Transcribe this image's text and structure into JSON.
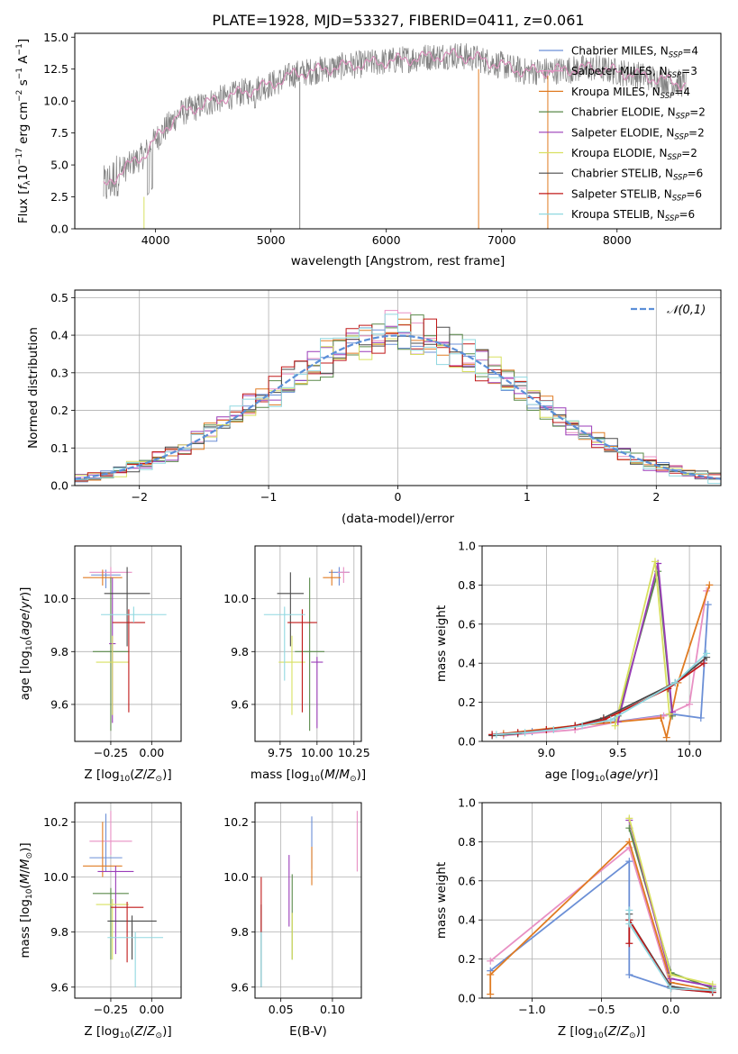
{
  "figure_title": "PLATE=1928, MJD=53327, FIBERID=0411, z=0.061",
  "series_styles": [
    {
      "name": "Chabrier MILES, N",
      "sub": "SSP",
      "suffix": "=4",
      "color": "#6b8fd6"
    },
    {
      "name": "Salpeter MILES, N",
      "sub": "SSP",
      "suffix": "=3",
      "color": "#e890c4"
    },
    {
      "name": "Kroupa MILES, N",
      "sub": "SSP",
      "suffix": "=4",
      "color": "#e07b22"
    },
    {
      "name": "Chabrier ELODIE, N",
      "sub": "SSP",
      "suffix": "=2",
      "color": "#5a8a4a"
    },
    {
      "name": "Salpeter ELODIE, N",
      "sub": "SSP",
      "suffix": "=2",
      "color": "#9a3cb8"
    },
    {
      "name": "Kroupa ELODIE, N",
      "sub": "SSP",
      "suffix": "=2",
      "color": "#d8e060"
    },
    {
      "name": "Chabrier STELIB, N",
      "sub": "SSP",
      "suffix": "=6",
      "color": "#4a4a4a"
    },
    {
      "name": "Salpeter STELIB, N",
      "sub": "SSP",
      "suffix": "=6",
      "color": "#c01818"
    },
    {
      "name": "Kroupa STELIB, N",
      "sub": "SSP",
      "suffix": "=6",
      "color": "#90d8e0"
    }
  ],
  "chart_data": [
    {
      "id": "spectrum",
      "type": "line",
      "xlabel": "wavelength [Angstrom, rest frame]",
      "ylabel": "Flux [f_λ 10^-17 erg cm^-2 s^-1 A^-1]",
      "xlim": [
        3300,
        8900
      ],
      "ylim": [
        0,
        15.3
      ],
      "xticks": [
        4000,
        5000,
        6000,
        7000,
        8000
      ],
      "yticks": [
        0.0,
        2.5,
        5.0,
        7.5,
        10.0,
        12.5,
        15.0
      ],
      "data_color": "#808080",
      "x_range": [
        3550,
        8600
      ],
      "envelope": [
        [
          3550,
          3.2
        ],
        [
          3700,
          4.5
        ],
        [
          3900,
          5.8
        ],
        [
          4000,
          7.0
        ],
        [
          4200,
          9.0
        ],
        [
          4500,
          10.0
        ],
        [
          4800,
          10.8
        ],
        [
          5000,
          11.3
        ],
        [
          5200,
          12.1
        ],
        [
          5600,
          12.7
        ],
        [
          6000,
          13.1
        ],
        [
          6400,
          13.5
        ],
        [
          6600,
          13.6
        ],
        [
          6800,
          13.3
        ],
        [
          7000,
          12.8
        ],
        [
          7200,
          12.3
        ],
        [
          7500,
          12.4
        ],
        [
          7800,
          12.6
        ],
        [
          8200,
          12.0
        ],
        [
          8600,
          11.3
        ]
      ],
      "grid": false,
      "legend": "upper right"
    },
    {
      "id": "residuals",
      "type": "histogram",
      "xlabel": "(data-model)/error",
      "ylabel": "Normed distribution",
      "xlim": [
        -2.5,
        2.5
      ],
      "ylim": [
        0,
        0.52
      ],
      "xticks": [
        -2,
        -1,
        0,
        1,
        2
      ],
      "yticks": [
        0.0,
        0.1,
        0.2,
        0.3,
        0.4,
        0.5
      ],
      "bin_width": 0.1,
      "reference": {
        "label": "𝒩(0,1)",
        "color": "#5b8fd8",
        "mean": 0,
        "sigma": 1
      },
      "grid": true,
      "legend": "upper right"
    },
    {
      "id": "age_vs_Z",
      "type": "errorbar",
      "xlabel": "Z [log10(Z/Z⊙)]",
      "ylabel": "age [log10(age/yr)]",
      "xlim": [
        -0.47,
        0.18
      ],
      "ylim": [
        9.46,
        10.2
      ],
      "xticks": [
        -0.25,
        0.0
      ],
      "yticks": [
        9.6,
        9.8,
        10.0
      ],
      "points": [
        {
          "x": -0.28,
          "y": 10.09,
          "xerr": 0.09,
          "yerr_lo": 0.05,
          "yerr_hi": 0.02
        },
        {
          "x": -0.25,
          "y": 10.1,
          "xerr": 0.13,
          "yerr_lo": 0.04,
          "yerr_hi": 0.02
        },
        {
          "x": -0.3,
          "y": 10.08,
          "xerr": 0.12,
          "yerr_lo": 0.03,
          "yerr_hi": 0.03
        },
        {
          "x": -0.25,
          "y": 9.8,
          "xerr": 0.11,
          "yerr_lo": 0.3,
          "yerr_hi": 0.28
        },
        {
          "x": -0.24,
          "y": 9.83,
          "xerr": 0.02,
          "yerr_lo": 0.3,
          "yerr_hi": 0.25
        },
        {
          "x": -0.24,
          "y": 9.76,
          "xerr": 0.1,
          "yerr_lo": 0.2,
          "yerr_hi": 0.1
        },
        {
          "x": -0.15,
          "y": 10.02,
          "xerr": 0.14,
          "yerr_lo": 0.2,
          "yerr_hi": 0.1
        },
        {
          "x": -0.14,
          "y": 9.91,
          "xerr": 0.1,
          "yerr_lo": 0.34,
          "yerr_hi": 0.05
        },
        {
          "x": -0.11,
          "y": 9.94,
          "xerr": 0.2,
          "yerr_lo": 0.03,
          "yerr_hi": 0.03
        }
      ],
      "grid": true
    },
    {
      "id": "age_vs_mass",
      "type": "errorbar",
      "xlabel": "mass [log10(M/M⊙)]",
      "ylabel": "",
      "xlim": [
        9.58,
        10.3
      ],
      "ylim": [
        9.46,
        10.2
      ],
      "xticks": [
        9.75,
        10.0,
        10.25
      ],
      "yticks": [
        9.6,
        9.8,
        10.0
      ],
      "points": [
        {
          "x": 10.15,
          "y": 10.1,
          "xerr": 0.07,
          "yerr_lo": 0.05,
          "yerr_hi": 0.02
        },
        {
          "x": 10.18,
          "y": 10.1,
          "xerr": 0.04,
          "yerr_lo": 0.04,
          "yerr_hi": 0.02
        },
        {
          "x": 10.1,
          "y": 10.08,
          "xerr": 0.06,
          "yerr_lo": 0.03,
          "yerr_hi": 0.03
        },
        {
          "x": 9.95,
          "y": 9.8,
          "xerr": 0.1,
          "yerr_lo": 0.3,
          "yerr_hi": 0.28
        },
        {
          "x": 10.0,
          "y": 9.76,
          "xerr": 0.04,
          "yerr_lo": 0.25,
          "yerr_hi": 0.02
        },
        {
          "x": 9.83,
          "y": 9.76,
          "xerr": 0.09,
          "yerr_lo": 0.2,
          "yerr_hi": 0.1
        },
        {
          "x": 9.82,
          "y": 10.02,
          "xerr": 0.09,
          "yerr_lo": 0.2,
          "yerr_hi": 0.08
        },
        {
          "x": 9.9,
          "y": 9.91,
          "xerr": 0.1,
          "yerr_lo": 0.34,
          "yerr_hi": 0.05
        },
        {
          "x": 9.78,
          "y": 9.94,
          "xerr": 0.14,
          "yerr_lo": 0.25,
          "yerr_hi": 0.03
        }
      ],
      "grid": true
    },
    {
      "id": "weight_vs_age",
      "type": "line",
      "xlabel": "age [log10(age/yr)]",
      "ylabel": "mass weight",
      "xlim": [
        8.55,
        10.22
      ],
      "ylim": [
        0,
        1.0
      ],
      "xticks": [
        9.0,
        9.5,
        10.0
      ],
      "yticks": [
        0.0,
        0.2,
        0.4,
        0.6,
        0.8,
        1.0
      ],
      "series": [
        {
          "x": [
            8.7,
            8.9,
            9.2,
            9.48,
            9.88,
            10.08,
            10.13
          ],
          "y": [
            0.03,
            0.05,
            0.08,
            0.1,
            0.14,
            0.12,
            0.7
          ]
        },
        {
          "x": [
            8.7,
            9.2,
            9.5,
            9.82,
            10.0,
            10.12
          ],
          "y": [
            0.03,
            0.06,
            0.1,
            0.13,
            0.19,
            0.77
          ]
        },
        {
          "x": [
            8.7,
            9.2,
            9.8,
            9.84,
            9.92,
            10.14
          ],
          "y": [
            0.04,
            0.08,
            0.12,
            0.02,
            0.3,
            0.8
          ]
        },
        {
          "x": [
            9.5,
            9.78,
            9.88
          ],
          "y": [
            0.13,
            0.87,
            0.13
          ]
        },
        {
          "x": [
            9.5,
            9.78,
            9.88
          ],
          "y": [
            0.1,
            0.91,
            0.15
          ]
        },
        {
          "x": [
            9.48,
            9.76,
            9.86
          ],
          "y": [
            0.08,
            0.92,
            0.14
          ]
        },
        {
          "x": [
            8.62,
            8.8,
            9.0,
            9.2,
            9.4,
            9.9,
            10.12
          ],
          "y": [
            0.03,
            0.04,
            0.06,
            0.08,
            0.12,
            0.3,
            0.43
          ]
        },
        {
          "x": [
            8.62,
            8.8,
            9.0,
            9.2,
            9.4,
            9.85,
            10.1
          ],
          "y": [
            0.035,
            0.045,
            0.06,
            0.08,
            0.11,
            0.27,
            0.4
          ]
        },
        {
          "x": [
            8.65,
            8.85,
            9.05,
            9.25,
            9.45,
            9.9,
            10.12
          ],
          "y": [
            0.035,
            0.045,
            0.06,
            0.08,
            0.11,
            0.3,
            0.45
          ]
        }
      ],
      "grid": true
    },
    {
      "id": "mass_vs_Z",
      "type": "errorbar",
      "xlabel": "Z [log10(Z/Z⊙)]",
      "ylabel": "mass [log10(M/M⊙)]",
      "xlim": [
        -0.47,
        0.18
      ],
      "ylim": [
        9.56,
        10.27
      ],
      "xticks": [
        -0.25,
        0.0
      ],
      "yticks": [
        9.6,
        9.8,
        10.0,
        10.2
      ],
      "points": [
        {
          "x": -0.28,
          "y": 10.07,
          "xerr": 0.1,
          "yerr_lo": 0.05,
          "yerr_hi": 0.16
        },
        {
          "x": -0.25,
          "y": 10.13,
          "xerr": 0.13,
          "yerr_lo": 0.05,
          "yerr_hi": 0.11
        },
        {
          "x": -0.3,
          "y": 10.04,
          "xerr": 0.12,
          "yerr_lo": 0.04,
          "yerr_hi": 0.16
        },
        {
          "x": -0.25,
          "y": 9.94,
          "xerr": 0.11,
          "yerr_lo": 0.24,
          "yerr_hi": 0.02
        },
        {
          "x": -0.22,
          "y": 10.02,
          "xerr": 0.11,
          "yerr_lo": 0.3,
          "yerr_hi": 0.02
        },
        {
          "x": -0.24,
          "y": 9.9,
          "xerr": 0.1,
          "yerr_lo": 0.2,
          "yerr_hi": 0.02
        },
        {
          "x": -0.12,
          "y": 9.84,
          "xerr": 0.15,
          "yerr_lo": 0.14,
          "yerr_hi": 0.02
        },
        {
          "x": -0.15,
          "y": 9.89,
          "xerr": 0.1,
          "yerr_lo": 0.2,
          "yerr_hi": 0.02
        },
        {
          "x": -0.1,
          "y": 9.78,
          "xerr": 0.17,
          "yerr_lo": 0.18,
          "yerr_hi": 0.02
        }
      ],
      "grid": true
    },
    {
      "id": "mass_vs_ebv",
      "type": "errorbar",
      "xlabel": "E(B-V)",
      "ylabel": "",
      "xlim": [
        0.025,
        0.128
      ],
      "ylim": [
        9.56,
        10.27
      ],
      "xticks": [
        0.05,
        0.1
      ],
      "yticks": [
        9.6,
        9.8,
        10.0,
        10.2
      ],
      "points": [
        {
          "x": 0.08,
          "y": 10.08,
          "xerr": 0,
          "yerr_lo": 0.05,
          "yerr_hi": 0.14
        },
        {
          "x": 0.124,
          "y": 10.13,
          "xerr": 0,
          "yerr_lo": 0.11,
          "yerr_hi": 0.11
        },
        {
          "x": 0.08,
          "y": 10.08,
          "xerr": 0,
          "yerr_lo": 0.11,
          "yerr_hi": 0.03
        },
        {
          "x": 0.061,
          "y": 9.85,
          "xerr": 0,
          "yerr_lo": 0.15,
          "yerr_hi": 0.16
        },
        {
          "x": 0.058,
          "y": 9.95,
          "xerr": 0,
          "yerr_lo": 0.13,
          "yerr_hi": 0.13
        },
        {
          "x": 0.061,
          "y": 9.85,
          "xerr": 0,
          "yerr_lo": 0.15,
          "yerr_hi": 0.02
        },
        {
          "x": 0.031,
          "y": 9.78,
          "xerr": 0,
          "yerr_lo": 0.18,
          "yerr_hi": 0.12
        },
        {
          "x": 0.031,
          "y": 9.9,
          "xerr": 0,
          "yerr_lo": 0.1,
          "yerr_hi": 0.1
        },
        {
          "x": 0.031,
          "y": 9.75,
          "xerr": 0,
          "yerr_lo": 0.15,
          "yerr_hi": 0.05
        }
      ],
      "grid": true
    },
    {
      "id": "weight_vs_Z",
      "type": "line",
      "xlabel": "Z [log10(Z/Z⊙)]",
      "ylabel": "mass weight",
      "xlim": [
        -1.36,
        0.36
      ],
      "ylim": [
        0,
        1.0
      ],
      "xticks": [
        -1.0,
        -0.5,
        0.0
      ],
      "yticks": [
        0.0,
        0.2,
        0.4,
        0.6,
        0.8,
        1.0
      ],
      "series": [
        {
          "x": [
            -1.3,
            -0.3,
            -0.3,
            0.0,
            0.3
          ],
          "y": [
            0.14,
            0.7,
            0.12,
            0.05,
            0.03
          ]
        },
        {
          "x": [
            -1.3,
            -0.3,
            0.0,
            0.3
          ],
          "y": [
            0.19,
            0.77,
            0.06,
            0.03
          ]
        },
        {
          "x": [
            -1.3,
            -1.3,
            -0.3,
            0.0,
            0.3
          ],
          "y": [
            0.02,
            0.12,
            0.8,
            0.08,
            0.04
          ]
        },
        {
          "x": [
            -0.3,
            0.0,
            0.3
          ],
          "y": [
            0.87,
            0.13,
            0.05
          ]
        },
        {
          "x": [
            -0.3,
            0.0,
            0.3
          ],
          "y": [
            0.91,
            0.1,
            0.06
          ]
        },
        {
          "x": [
            -0.3,
            0.0,
            0.3
          ],
          "y": [
            0.92,
            0.12,
            0.07
          ]
        },
        {
          "x": [
            -0.3,
            -0.3,
            0.0,
            0.3
          ],
          "y": [
            0.43,
            0.4,
            0.06,
            0.03
          ]
        },
        {
          "x": [
            -0.3,
            -0.3,
            0.0,
            0.3
          ],
          "y": [
            0.28,
            0.4,
            0.05,
            0.03
          ]
        },
        {
          "x": [
            -0.3,
            -0.3,
            0.0,
            0.3
          ],
          "y": [
            0.45,
            0.38,
            0.05,
            0.04
          ]
        }
      ],
      "grid": true
    }
  ]
}
